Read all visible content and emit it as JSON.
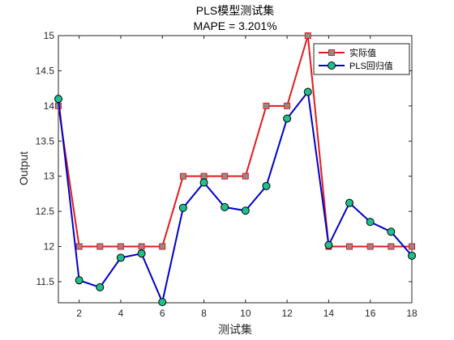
{
  "chart_data": {
    "type": "line",
    "title": "PLS模型测试集",
    "subtitle": "MAPE = 3.201%",
    "xlabel": "测试集",
    "ylabel": "Output",
    "xlim": [
      1,
      18
    ],
    "ylim": [
      11.2,
      15
    ],
    "x_ticks": [
      2,
      4,
      6,
      8,
      10,
      12,
      14,
      16,
      18
    ],
    "y_ticks": [
      11.5,
      12,
      12.5,
      13,
      13.5,
      14,
      14.5,
      15
    ],
    "x": [
      1,
      2,
      3,
      4,
      5,
      6,
      7,
      8,
      9,
      10,
      11,
      12,
      13,
      14,
      15,
      16,
      17,
      18
    ],
    "series": [
      {
        "name": "实际值",
        "color": "#e31a1c",
        "marker": "square",
        "marker_fill": "#8c8c8c",
        "values": [
          14,
          12,
          12,
          12,
          12,
          12,
          13,
          13,
          13,
          13,
          14,
          14,
          15,
          12,
          12,
          12,
          12,
          12
        ]
      },
      {
        "name": "PLS回归值",
        "color": "#0000cc",
        "marker": "circle",
        "marker_fill": "#1fbf8f",
        "values": [
          14.1,
          11.52,
          11.42,
          11.84,
          11.9,
          11.21,
          12.55,
          12.91,
          12.56,
          12.51,
          12.86,
          13.82,
          14.2,
          12.02,
          12.62,
          12.35,
          12.21,
          11.87
        ]
      }
    ],
    "grid": false,
    "box": true,
    "legend_position": "top-right"
  }
}
